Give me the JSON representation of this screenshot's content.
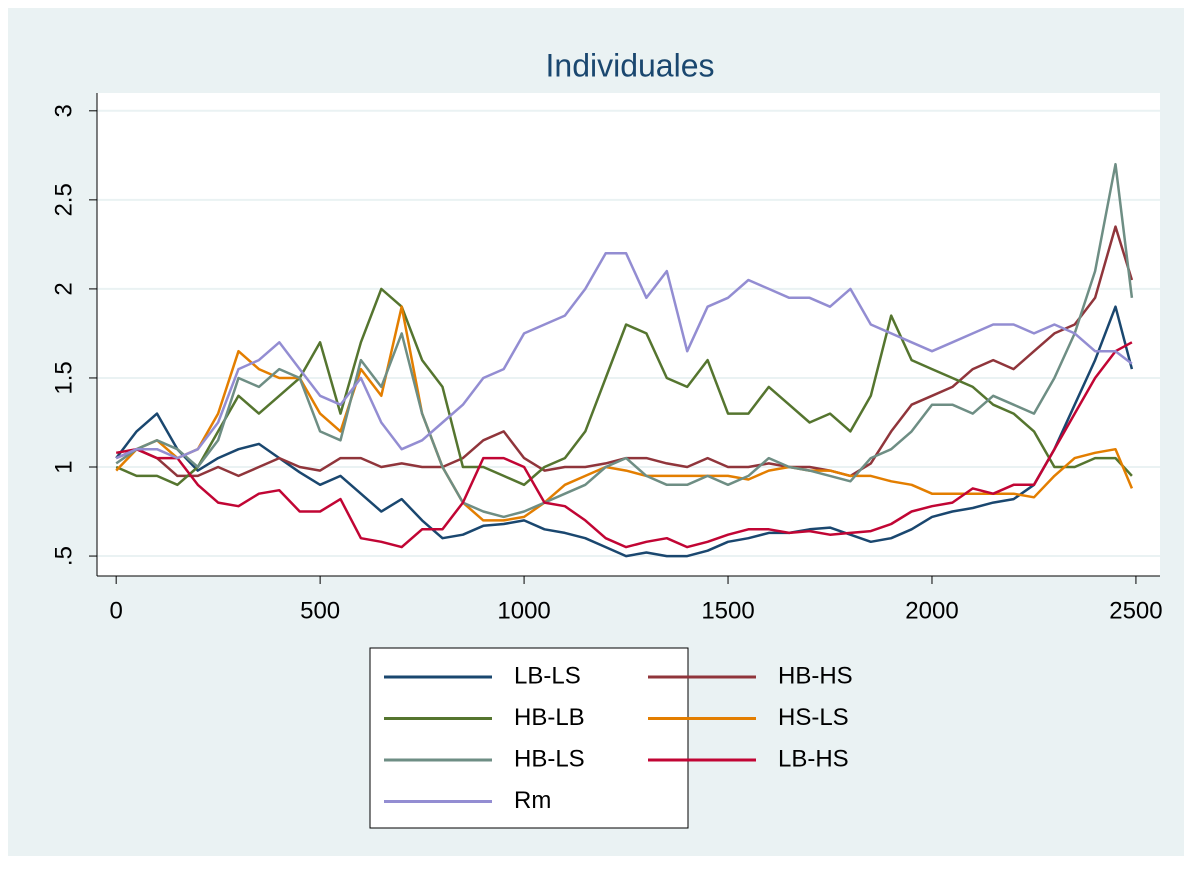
{
  "chart_data": {
    "type": "line",
    "title": "Individuales",
    "x": [
      0,
      50,
      100,
      150,
      200,
      250,
      300,
      350,
      400,
      450,
      500,
      550,
      600,
      650,
      700,
      750,
      800,
      850,
      900,
      950,
      1000,
      1050,
      1100,
      1150,
      1200,
      1250,
      1300,
      1350,
      1400,
      1450,
      1500,
      1550,
      1600,
      1650,
      1700,
      1750,
      1800,
      1850,
      1900,
      1950,
      2000,
      2050,
      2100,
      2150,
      2200,
      2250,
      2300,
      2350,
      2400,
      2450,
      2490
    ],
    "series": [
      {
        "name": "LB-LS",
        "color": "#1a476f",
        "values": [
          1.05,
          1.2,
          1.3,
          1.1,
          0.98,
          1.05,
          1.1,
          1.13,
          1.05,
          0.97,
          0.9,
          0.95,
          0.85,
          0.75,
          0.82,
          0.7,
          0.6,
          0.62,
          0.67,
          0.68,
          0.7,
          0.65,
          0.63,
          0.6,
          0.55,
          0.5,
          0.52,
          0.5,
          0.5,
          0.53,
          0.58,
          0.6,
          0.63,
          0.63,
          0.65,
          0.66,
          0.62,
          0.58,
          0.6,
          0.65,
          0.72,
          0.75,
          0.77,
          0.8,
          0.82,
          0.9,
          1.1,
          1.35,
          1.6,
          1.9,
          1.55
        ]
      },
      {
        "name": "HB-HS",
        "color": "#90353b",
        "values": [
          1.05,
          1.1,
          1.05,
          0.95,
          0.95,
          1.0,
          0.95,
          1.0,
          1.05,
          1.0,
          0.98,
          1.05,
          1.05,
          1.0,
          1.02,
          1.0,
          1.0,
          1.05,
          1.15,
          1.2,
          1.05,
          0.98,
          1.0,
          1.0,
          1.02,
          1.05,
          1.05,
          1.02,
          1.0,
          1.05,
          1.0,
          1.0,
          1.02,
          1.0,
          1.0,
          0.98,
          0.95,
          1.02,
          1.2,
          1.35,
          1.4,
          1.45,
          1.55,
          1.6,
          1.55,
          1.65,
          1.75,
          1.8,
          1.95,
          2.35,
          2.05
        ]
      },
      {
        "name": "HB-LB",
        "color": "#55752f",
        "values": [
          1.0,
          0.95,
          0.95,
          0.9,
          1.0,
          1.2,
          1.4,
          1.3,
          1.4,
          1.5,
          1.7,
          1.3,
          1.7,
          2.0,
          1.9,
          1.6,
          1.45,
          1.0,
          1.0,
          0.95,
          0.9,
          1.0,
          1.05,
          1.2,
          1.5,
          1.8,
          1.75,
          1.5,
          1.45,
          1.6,
          1.3,
          1.3,
          1.45,
          1.35,
          1.25,
          1.3,
          1.2,
          1.4,
          1.85,
          1.6,
          1.55,
          1.5,
          1.45,
          1.35,
          1.3,
          1.2,
          1.0,
          1.0,
          1.05,
          1.05,
          0.95
        ]
      },
      {
        "name": "HS-LS",
        "color": "#e37e00",
        "values": [
          0.98,
          1.1,
          1.15,
          1.05,
          1.1,
          1.3,
          1.65,
          1.55,
          1.5,
          1.5,
          1.3,
          1.2,
          1.55,
          1.4,
          1.9,
          1.3,
          1.0,
          0.8,
          0.7,
          0.7,
          0.72,
          0.8,
          0.9,
          0.95,
          1.0,
          0.98,
          0.95,
          0.95,
          0.95,
          0.95,
          0.95,
          0.93,
          0.98,
          1.0,
          0.98,
          0.98,
          0.95,
          0.95,
          0.92,
          0.9,
          0.85,
          0.85,
          0.85,
          0.85,
          0.85,
          0.83,
          0.95,
          1.05,
          1.08,
          1.1,
          0.88
        ]
      },
      {
        "name": "HB-LS",
        "color": "#6e8e84",
        "values": [
          1.02,
          1.1,
          1.15,
          1.1,
          1.0,
          1.15,
          1.5,
          1.45,
          1.55,
          1.5,
          1.2,
          1.15,
          1.6,
          1.45,
          1.75,
          1.3,
          1.0,
          0.8,
          0.75,
          0.72,
          0.75,
          0.8,
          0.85,
          0.9,
          1.0,
          1.05,
          0.95,
          0.9,
          0.9,
          0.95,
          0.9,
          0.95,
          1.05,
          1.0,
          0.98,
          0.95,
          0.92,
          1.05,
          1.1,
          1.2,
          1.35,
          1.35,
          1.3,
          1.4,
          1.35,
          1.3,
          1.5,
          1.75,
          2.1,
          2.7,
          1.95
        ]
      },
      {
        "name": "LB-HS",
        "color": "#c10534",
        "values": [
          1.08,
          1.1,
          1.05,
          1.05,
          0.9,
          0.8,
          0.78,
          0.85,
          0.87,
          0.75,
          0.75,
          0.82,
          0.6,
          0.58,
          0.55,
          0.65,
          0.65,
          0.8,
          1.05,
          1.05,
          1.0,
          0.8,
          0.78,
          0.7,
          0.6,
          0.55,
          0.58,
          0.6,
          0.55,
          0.58,
          0.62,
          0.65,
          0.65,
          0.63,
          0.64,
          0.62,
          0.63,
          0.64,
          0.68,
          0.75,
          0.78,
          0.8,
          0.88,
          0.85,
          0.9,
          0.9,
          1.1,
          1.3,
          1.5,
          1.65,
          1.7
        ]
      },
      {
        "name": "Rm",
        "color": "#938dd2",
        "values": [
          1.05,
          1.1,
          1.1,
          1.05,
          1.1,
          1.25,
          1.55,
          1.6,
          1.7,
          1.55,
          1.4,
          1.35,
          1.5,
          1.25,
          1.1,
          1.15,
          1.25,
          1.35,
          1.5,
          1.55,
          1.75,
          1.8,
          1.85,
          2.0,
          2.2,
          2.2,
          1.95,
          2.1,
          1.65,
          1.9,
          1.95,
          2.05,
          2.0,
          1.95,
          1.95,
          1.9,
          2.0,
          1.8,
          1.75,
          1.7,
          1.65,
          1.7,
          1.75,
          1.8,
          1.8,
          1.75,
          1.8,
          1.75,
          1.65,
          1.65,
          1.58
        ]
      }
    ],
    "xlim": [
      -47,
      2559
    ],
    "ylim": [
      0.388,
      3.1
    ],
    "xticks": [
      0,
      500,
      1000,
      1500,
      2000,
      2500
    ],
    "yticks": [
      {
        "value": 0.5,
        "label": ".5"
      },
      1,
      1.5,
      2,
      2.5,
      3
    ],
    "grid": true
  }
}
